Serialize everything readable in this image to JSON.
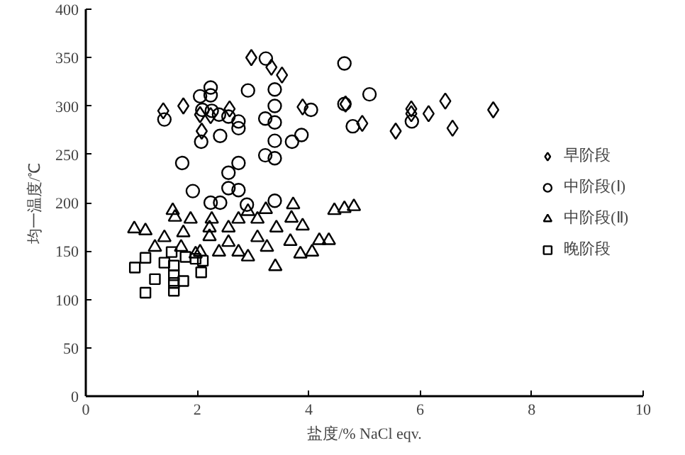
{
  "chart_data": {
    "type": "scatter",
    "xlabel": "盐度/% NaCl eqv.",
    "ylabel": "均一温度/℃",
    "xlim": [
      0,
      10
    ],
    "ylim": [
      0,
      400
    ],
    "xticks": [
      0,
      2,
      4,
      6,
      8,
      10
    ],
    "yticks": [
      0,
      50,
      100,
      150,
      200,
      250,
      300,
      350,
      400
    ],
    "grid": false,
    "legend": "right",
    "series": [
      {
        "name": "早阶段",
        "color": "#000000",
        "marker": "diamond",
        "x": [
          1.39,
          1.75,
          2.05,
          2.08,
          2.24,
          2.58,
          2.97,
          3.33,
          3.52,
          3.89,
          4.66,
          4.96,
          5.56,
          5.84,
          5.84,
          6.15,
          6.45,
          6.58,
          7.31
        ],
        "values": [
          295,
          300,
          291,
          274,
          290,
          297,
          350,
          340,
          332,
          299,
          302,
          282,
          274,
          297,
          292,
          292,
          305,
          277,
          296
        ]
      },
      {
        "name": "中阶段(Ⅰ)",
        "color": "#000000",
        "marker": "circle",
        "x": [
          1.41,
          2.24,
          2.24,
          2.05,
          2.09,
          2.26,
          2.39,
          2.56,
          2.74,
          2.74,
          2.41,
          2.07,
          2.91,
          3.23,
          3.39,
          3.39,
          3.22,
          3.39,
          3.39,
          3.22,
          3.39,
          3.7,
          3.87,
          4.04,
          4.64,
          4.64,
          4.79,
          5.09,
          1.73,
          2.56,
          2.74,
          1.92,
          2.56,
          2.74,
          2.24,
          2.41,
          2.89,
          3.39,
          5.85
        ],
        "values": [
          286,
          319,
          311,
          310,
          296,
          295,
          291,
          289,
          284,
          277,
          269,
          263,
          316,
          349,
          317,
          300,
          287,
          283,
          264,
          249,
          246,
          263,
          270,
          296,
          344,
          302,
          279,
          312,
          241,
          231,
          241,
          212,
          215,
          213,
          200,
          200,
          198,
          202,
          284
        ]
      },
      {
        "name": "中阶段(Ⅱ)",
        "color": "#000000",
        "marker": "triangle",
        "x": [
          0.87,
          1.07,
          1.56,
          1.6,
          1.88,
          1.41,
          1.24,
          1.75,
          2.22,
          2.22,
          2.05,
          2.56,
          2.74,
          2.91,
          3.23,
          3.72,
          3.69,
          3.89,
          3.42,
          3.08,
          2.91,
          3.4,
          2.74,
          3.25,
          3.67,
          3.85,
          4.06,
          4.19,
          4.36,
          4.46,
          4.64,
          4.81,
          1.71,
          1.97,
          2.39,
          2.26,
          3.08,
          2.56
        ],
        "values": [
          173,
          171,
          192,
          185,
          183,
          164,
          154,
          169,
          174,
          165,
          149,
          174,
          183,
          191,
          193,
          198,
          184,
          176,
          174,
          164,
          144,
          134,
          149,
          154,
          160,
          147,
          149,
          161,
          161,
          192,
          194,
          196,
          154,
          147,
          149,
          183,
          183,
          159
        ]
      },
      {
        "name": "晚阶段",
        "color": "#000000",
        "marker": "square",
        "x": [
          0.88,
          1.07,
          1.07,
          1.24,
          1.41,
          1.58,
          1.58,
          1.58,
          1.75,
          2.07,
          1.58,
          1.79,
          1.97,
          1.54,
          2.1
        ],
        "values": [
          133,
          143,
          107,
          121,
          138,
          125,
          109,
          117,
          119,
          128,
          135,
          144,
          142,
          149,
          140
        ]
      }
    ]
  }
}
